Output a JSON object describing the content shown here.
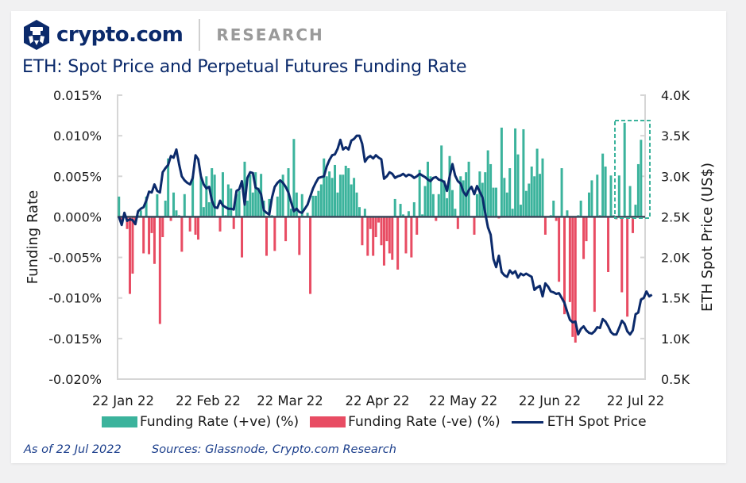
{
  "brand": {
    "logo_icon": "crypto-com-lion-hexagon-icon",
    "name": "crypto.com",
    "section": "RESEARCH",
    "color_primary": "#0b2a6b",
    "color_section": "#9a9a9a"
  },
  "footer": {
    "as_of": "As of 22 Jul 2022",
    "sources": "Sources: Glassnode, Crypto.com Research"
  },
  "legend": {
    "positive": "Funding Rate (+ve) (%)",
    "negative": "Funding Rate (-ve) (%)",
    "line": "ETH Spot Price"
  },
  "chart_data": {
    "type": "bar+line",
    "title": "ETH: Spot Price and Perpetual Futures Funding Rate",
    "xlabel": "",
    "ylabel": "Funding Rate",
    "y2label": "ETH Spot Price (US$)",
    "ylim": [
      -0.02,
      0.015
    ],
    "y2lim": [
      500,
      4000
    ],
    "yticks": [
      "0.015%",
      "0.010%",
      "0.005%",
      "0.000%",
      "-0.005%",
      "-0.010%",
      "-0.015%",
      "-0.020%"
    ],
    "y2ticks": [
      "4.0K",
      "3.5K",
      "3.0K",
      "2.5K",
      "2.0K",
      "1.5K",
      "1.0K",
      "0.5K"
    ],
    "xticks": [
      "22 Jan 22",
      "22 Feb 22",
      "22 Mar 22",
      "22 Apr 22",
      "22 May 22",
      "22 Jun 22",
      "22 Jul 22"
    ],
    "x_start": "2022-01-22",
    "x_end": "2022-07-22",
    "grid": false,
    "legend_position": "bottom",
    "colors": {
      "positive": "#3bb39c",
      "negative": "#e84c63",
      "line": "#0b2a6b",
      "zero_line": "#3d4a5c",
      "highlight_box": "#3bb39c"
    },
    "annotation": "dashed highlight box around last ~10 days of positive funding (Jul 2022)",
    "series": [
      {
        "name": "Funding Rate (%)",
        "unit": "%",
        "values": [
          0.0025,
          -0.0005,
          0.0,
          -0.0015,
          -0.0095,
          -0.007,
          -0.001,
          0.0002,
          0.0008,
          -0.0045,
          0.0025,
          -0.0046,
          -0.002,
          -0.0058,
          0.0028,
          -0.0132,
          -0.0025,
          0.002,
          0.0072,
          -0.0005,
          0.003,
          0.0008,
          0.0002,
          -0.0043,
          0.0028,
          0.0,
          -0.0018,
          0.005,
          -0.0022,
          -0.0028,
          0.005,
          0.0012,
          0.005,
          0.0018,
          0.006,
          0.0052,
          0.0,
          -0.0018,
          0.0055,
          0.0002,
          0.004,
          0.0035,
          -0.0015,
          0.0028,
          0.0032,
          -0.005,
          0.0068,
          0.002,
          0.0052,
          0.003,
          0.0055,
          0.0036,
          0.0053,
          0.002,
          -0.0048,
          0.0022,
          0.0002,
          -0.0042,
          0.0025,
          0.0045,
          0.0052,
          -0.003,
          0.006,
          0.001,
          0.0096,
          0.003,
          -0.0047,
          0.0028,
          0.0,
          0.0005,
          -0.0095,
          0.0026,
          0.0026,
          0.0032,
          0.004,
          0.0072,
          0.005,
          0.0056,
          0.0048,
          0.0064,
          0.003,
          0.0052,
          0.0052,
          0.0063,
          0.006,
          0.004,
          0.0048,
          0.003,
          0.0012,
          -0.0035,
          0.001,
          -0.0048,
          -0.0015,
          -0.0048,
          -0.0025,
          -0.0007,
          -0.0035,
          -0.006,
          -0.003,
          -0.0045,
          -0.0053,
          0.0022,
          -0.0065,
          0.0016,
          0.0003,
          -0.0045,
          0.0007,
          -0.005,
          0.0018,
          -0.0022,
          0.0058,
          0.0003,
          0.0038,
          0.0068,
          0.005,
          0.0028,
          -0.0005,
          0.0028,
          0.0088,
          0.0045,
          0.0023,
          0.0075,
          0.0033,
          0.001,
          -0.0015,
          0.005,
          0.0045,
          0.0055,
          0.0068,
          0.0,
          -0.0022,
          0.0028,
          0.0056,
          0.0042,
          0.0055,
          0.0082,
          0.0065,
          0.0036,
          0.0036,
          -0.0002,
          0.011,
          0.0048,
          0.003,
          0.006,
          0.001,
          0.0109,
          0.0077,
          0.0015,
          0.0108,
          0.0032,
          0.0041,
          0.0062,
          0.005,
          0.0084,
          0.0053,
          0.0072,
          -0.0022,
          0.0,
          0.0002,
          0.002,
          -0.0005,
          -0.008,
          0.006,
          -0.012,
          0.0008,
          -0.0105,
          -0.0148,
          -0.0155,
          0.0002,
          0.002,
          -0.0052,
          -0.003,
          0.003,
          0.0045,
          -0.0117,
          0.0052,
          0.0002,
          0.0078,
          0.0062,
          -0.0068,
          0.0051,
          0.0002,
          -0.0003,
          0.0051,
          -0.0093,
          0.0116,
          -0.0123,
          0.0038,
          -0.002,
          0.0015,
          0.0065,
          0.0095,
          0.0001
        ]
      },
      {
        "name": "ETH Spot Price",
        "unit": "US$",
        "axis": "right",
        "values": [
          2500,
          2400,
          2550,
          2450,
          2470,
          2460,
          2410,
          2570,
          2600,
          2620,
          2700,
          2810,
          2800,
          2900,
          2820,
          2800,
          3050,
          3100,
          3140,
          3250,
          3230,
          3330,
          3150,
          3000,
          2950,
          2920,
          2900,
          2980,
          3260,
          3210,
          3000,
          2900,
          2850,
          2870,
          2700,
          2620,
          2610,
          2700,
          2640,
          2620,
          2600,
          2600,
          2590,
          2820,
          2840,
          2940,
          2650,
          2980,
          3050,
          3040,
          2860,
          2840,
          2780,
          2580,
          2550,
          2530,
          2740,
          2870,
          2920,
          2950,
          2920,
          2870,
          2800,
          2680,
          2570,
          2600,
          2560,
          2550,
          2600,
          2650,
          2750,
          2850,
          2920,
          2980,
          2990,
          3000,
          3120,
          3200,
          3260,
          3270,
          3340,
          3450,
          3330,
          3360,
          3330,
          3440,
          3460,
          3500,
          3500,
          3400,
          3180,
          3230,
          3250,
          3220,
          3260,
          3230,
          3210,
          2970,
          3000,
          3050,
          3030,
          2980,
          3000,
          3010,
          3030,
          3000,
          3020,
          3010,
          2980,
          3000,
          3030,
          3010,
          2990,
          2960,
          2940,
          2980,
          2990,
          2960,
          2950,
          2930,
          2820,
          3000,
          3150,
          3010,
          2940,
          2910,
          2810,
          2760,
          2830,
          2870,
          2780,
          2880,
          2810,
          2740,
          2550,
          2370,
          2280,
          1980,
          1880,
          2020,
          1820,
          1780,
          1760,
          1840,
          1800,
          1830,
          1750,
          1800,
          1780,
          1800,
          1780,
          1760,
          1600,
          1630,
          1650,
          1520,
          1680,
          1640,
          1580,
          1570,
          1550,
          1560,
          1500,
          1440,
          1330,
          1230,
          1200,
          1210,
          1050,
          1120,
          1150,
          1100,
          1070,
          1060,
          1090,
          1140,
          1130,
          1240,
          1210,
          1150,
          1080,
          1050,
          1050,
          1130,
          1220,
          1180,
          1090,
          1050,
          1100,
          1300,
          1320,
          1480,
          1500,
          1580,
          1520,
          1540
        ]
      }
    ]
  }
}
